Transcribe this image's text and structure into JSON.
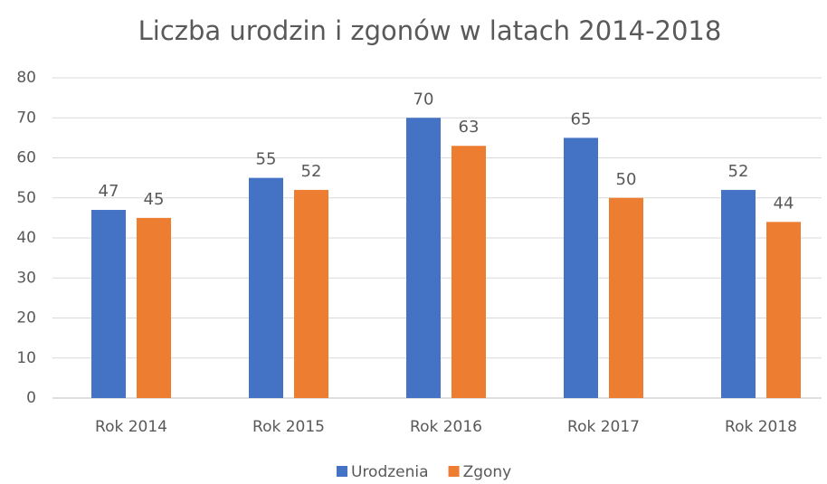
{
  "chart_data": {
    "type": "bar",
    "title": "Liczba urodzin i zgonów w latach 2014-2018",
    "categories": [
      "Rok 2014",
      "Rok 2015",
      "Rok 2016",
      "Rok 2017",
      "Rok 2018"
    ],
    "series": [
      {
        "name": "Urodzenia",
        "color": "#4472c4",
        "values": [
          47,
          55,
          70,
          65,
          52
        ]
      },
      {
        "name": "Zgony",
        "color": "#ed7d31",
        "values": [
          45,
          52,
          63,
          50,
          44
        ]
      }
    ],
    "ylim": [
      0,
      80
    ],
    "yticks": [
      0,
      10,
      20,
      30,
      40,
      50,
      60,
      70,
      80
    ],
    "grid": true,
    "legend": "bottom"
  }
}
